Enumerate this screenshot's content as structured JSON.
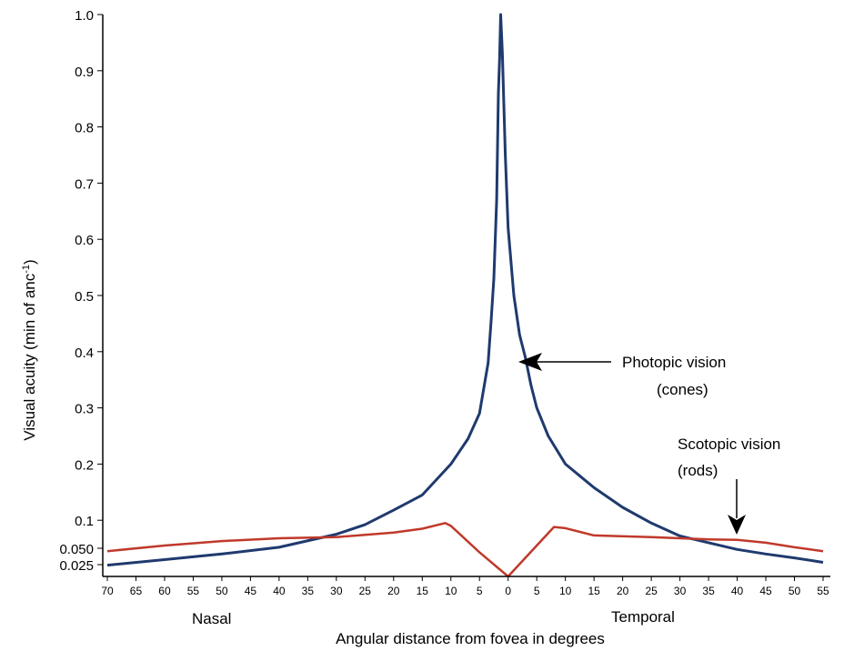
{
  "chart_data": {
    "type": "line",
    "ylabel": "Visual acuity (min of anc",
    "ylabel_sup": "-1",
    "ylabel_close": ")",
    "xlabel": "Angular distance from fovea in degrees",
    "side_labels": {
      "left": "Nasal",
      "right": "Temporal"
    },
    "x_ticks": [
      "70",
      "65",
      "60",
      "55",
      "50",
      "45",
      "40",
      "35",
      "30",
      "25",
      "20",
      "15",
      "10",
      "5",
      "0",
      "5",
      "10",
      "15",
      "20",
      "25",
      "30",
      "35",
      "40",
      "45",
      "50",
      "55"
    ],
    "y_ticks": [
      "1.0",
      "0.9",
      "0.8",
      "0.7",
      "0.6",
      "0.5",
      "0.4",
      "0.3",
      "0.2",
      "0.1",
      "0.050",
      "0.025"
    ],
    "y_tick_values": [
      1.0,
      0.9,
      0.8,
      0.7,
      0.6,
      0.5,
      0.4,
      0.3,
      0.2,
      0.1,
      0.05,
      0.025
    ],
    "xlim": [
      -70,
      55
    ],
    "ylim": [
      0,
      1.0
    ],
    "series": [
      {
        "label": "Photopic vision",
        "sublabel": "(cones)",
        "color": "#1f3a6e",
        "points": [
          [
            -70,
            0.02
          ],
          [
            -60,
            0.03
          ],
          [
            -50,
            0.04
          ],
          [
            -40,
            0.052
          ],
          [
            -30,
            0.075
          ],
          [
            -25,
            0.092
          ],
          [
            -20,
            0.118
          ],
          [
            -15,
            0.145
          ],
          [
            -10,
            0.2
          ],
          [
            -7,
            0.245
          ],
          [
            -5,
            0.29
          ],
          [
            -3.5,
            0.38
          ],
          [
            -3,
            0.45
          ],
          [
            -2.5,
            0.53
          ],
          [
            -2,
            0.67
          ],
          [
            -1.7,
            0.86
          ],
          [
            -1.5,
            0.92
          ],
          [
            -1.3,
            1.0
          ],
          [
            -1,
            0.93
          ],
          [
            -0.5,
            0.75
          ],
          [
            0,
            0.62
          ],
          [
            1,
            0.5
          ],
          [
            2,
            0.43
          ],
          [
            3,
            0.39
          ],
          [
            4,
            0.34
          ],
          [
            5,
            0.3
          ],
          [
            7,
            0.25
          ],
          [
            10,
            0.2
          ],
          [
            15,
            0.158
          ],
          [
            20,
            0.123
          ],
          [
            25,
            0.095
          ],
          [
            30,
            0.072
          ],
          [
            35,
            0.06
          ],
          [
            40,
            0.048
          ],
          [
            45,
            0.04
          ],
          [
            50,
            0.033
          ],
          [
            55,
            0.025
          ]
        ]
      },
      {
        "label": "Scotopic vision",
        "sublabel": "(rods)",
        "color": "#c0392b",
        "points": [
          [
            -70,
            0.045
          ],
          [
            -60,
            0.055
          ],
          [
            -50,
            0.063
          ],
          [
            -40,
            0.068
          ],
          [
            -30,
            0.07
          ],
          [
            -20,
            0.078
          ],
          [
            -15,
            0.085
          ],
          [
            -11,
            0.095
          ],
          [
            -10,
            0.09
          ],
          [
            -5,
            0.043
          ],
          [
            0,
            0.0
          ],
          [
            5,
            0.055
          ],
          [
            8,
            0.088
          ],
          [
            10,
            0.086
          ],
          [
            15,
            0.073
          ],
          [
            25,
            0.07
          ],
          [
            30,
            0.068
          ],
          [
            35,
            0.066
          ],
          [
            40,
            0.065
          ],
          [
            45,
            0.06
          ],
          [
            50,
            0.052
          ],
          [
            55,
            0.045
          ]
        ]
      }
    ]
  }
}
